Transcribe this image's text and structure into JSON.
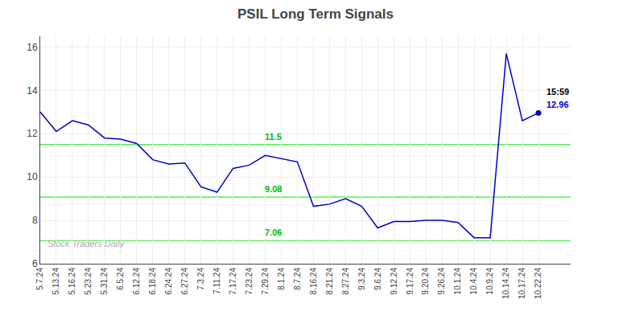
{
  "chart_data": {
    "type": "line",
    "title": "PSIL Long Term Signals",
    "categories": [
      "5.7.24",
      "5.13.24",
      "5.16.24",
      "5.23.24",
      "5.31.24",
      "6.5.24",
      "6.12.24",
      "6.18.24",
      "6.24.24",
      "6.27.24",
      "7.3.24",
      "7.11.24",
      "7.17.24",
      "7.23.24",
      "7.29.24",
      "8.1.24",
      "8.7.24",
      "8.16.24",
      "8.21.24",
      "8.27.24",
      "9.3.24",
      "9.6.24",
      "9.12.24",
      "9.17.24",
      "9.20.24",
      "9.26.24",
      "10.1.24",
      "10.4.24",
      "10.9.24",
      "10.14.24",
      "10.17.24",
      "10.22.24"
    ],
    "values": [
      13.0,
      12.1,
      12.6,
      12.4,
      11.8,
      11.75,
      11.55,
      10.8,
      10.6,
      10.65,
      9.55,
      9.3,
      10.4,
      10.55,
      11.0,
      10.85,
      10.7,
      8.65,
      8.75,
      9.0,
      8.65,
      7.65,
      7.95,
      7.95,
      8.0,
      8.0,
      7.9,
      7.2,
      7.2,
      15.7,
      12.6,
      12.96
    ],
    "color": "#0000cc",
    "marker": "last",
    "ylim": [
      6.0,
      16.5
    ],
    "yticks": [
      6,
      8,
      10,
      12,
      14,
      16
    ],
    "grid": true,
    "hlines": [
      {
        "value": 11.5,
        "label": "11.5"
      },
      {
        "value": 9.08,
        "label": "9.08"
      },
      {
        "value": 7.06,
        "label": "7.06"
      }
    ],
    "hline_color": "#55ee55",
    "hline_label_color": "#00bb00",
    "watermark": "Stock Traders Daily",
    "last_label": "15:59",
    "last_value_label": "12.96",
    "last_value_color": "#0000cc"
  }
}
